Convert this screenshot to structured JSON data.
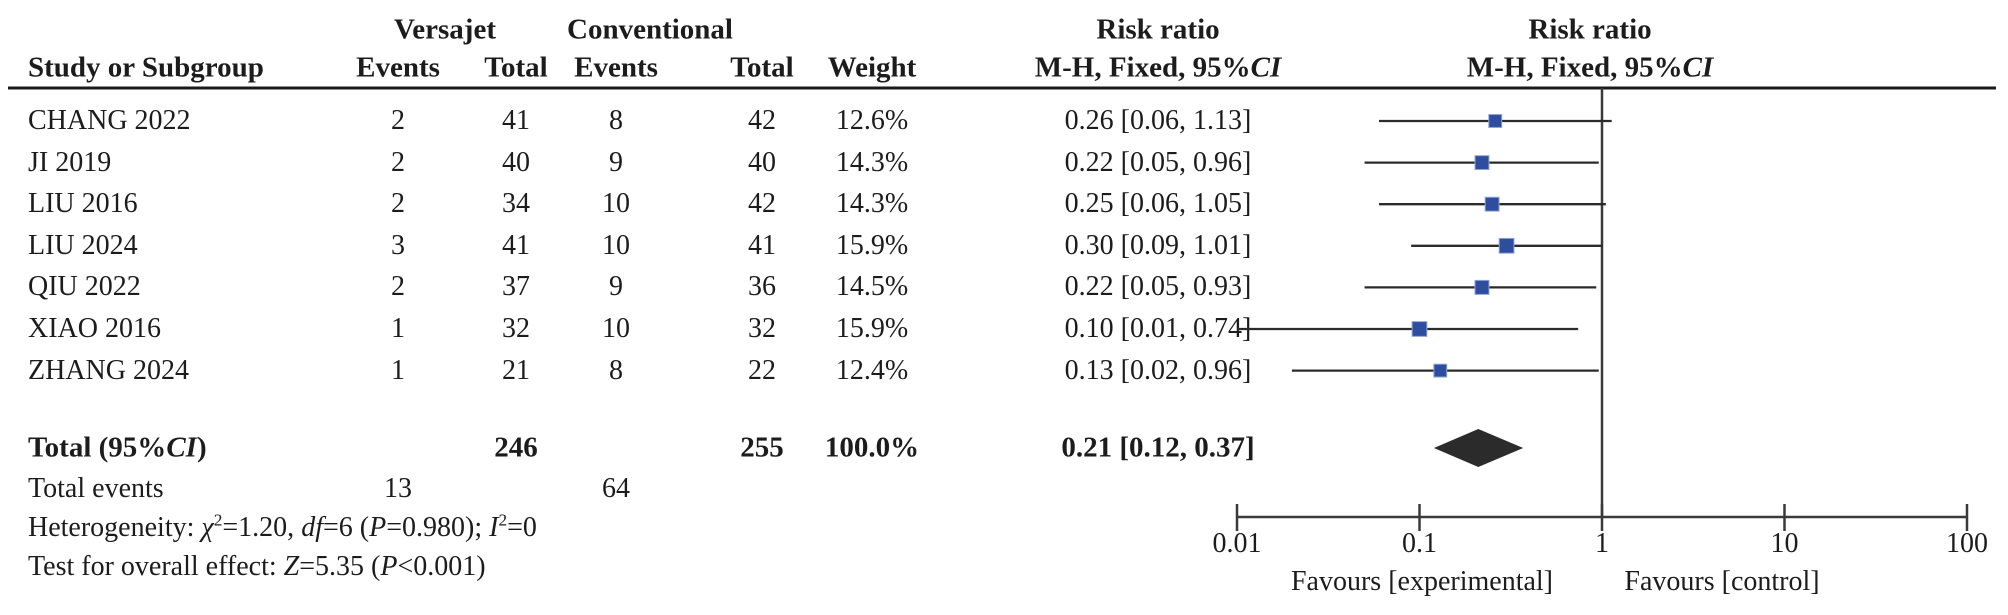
{
  "header": {
    "group1": "Versajet",
    "group2": "Conventional",
    "col_study": "Study or Subgroup",
    "col_events": "Events",
    "col_total": "Total",
    "col_weight": "Weight",
    "risk_ratio_title_left": "Risk ratio",
    "risk_ratio_title_right": "Risk ratio",
    "mh_label_segments": [
      {
        "t": "M-H, Fixed, 95%"
      },
      {
        "t": "CI",
        "i": true
      }
    ]
  },
  "colors": {
    "square": "#2e4d9e",
    "diamond": "#2b2b2b",
    "line": "#2b2b2b",
    "axis": "#3a3a3a",
    "rule": "#1a1a1a",
    "text": "#1c1c1c"
  },
  "chart_data": {
    "type": "forest",
    "effect_measure": "Risk ratio (M-H, Fixed, 95% CI)",
    "x_scale": "log",
    "x_range": [
      0.01,
      100
    ],
    "axis_ticks": [
      0.01,
      0.1,
      1,
      10,
      100
    ],
    "axis_tick_labels": [
      "0.01",
      "0.1",
      "1",
      "10",
      "100"
    ],
    "favours_left": "Favours [experimental]",
    "favours_right": "Favours [control]",
    "null_line": 1,
    "studies": [
      {
        "name": "CHANG 2022",
        "events1": "2",
        "total1": "41",
        "events2": "8",
        "total2": "42",
        "weight": "12.6%",
        "w": 12.6,
        "rr": 0.26,
        "ci_low": 0.06,
        "ci_high": 1.13,
        "label": "0.26 [0.06, 1.13]"
      },
      {
        "name": "JI 2019",
        "events1": "2",
        "total1": "40",
        "events2": "9",
        "total2": "40",
        "weight": "14.3%",
        "w": 14.3,
        "rr": 0.22,
        "ci_low": 0.05,
        "ci_high": 0.96,
        "label": "0.22 [0.05, 0.96]"
      },
      {
        "name": "LIU 2016",
        "events1": "2",
        "total1": "34",
        "events2": "10",
        "total2": "42",
        "weight": "14.3%",
        "w": 14.3,
        "rr": 0.25,
        "ci_low": 0.06,
        "ci_high": 1.05,
        "label": "0.25 [0.06, 1.05]"
      },
      {
        "name": "LIU 2024",
        "events1": "3",
        "total1": "41",
        "events2": "10",
        "total2": "41",
        "weight": "15.9%",
        "w": 15.9,
        "rr": 0.3,
        "ci_low": 0.09,
        "ci_high": 1.01,
        "label": "0.30 [0.09, 1.01]"
      },
      {
        "name": "QIU 2022",
        "events1": "2",
        "total1": "37",
        "events2": "9",
        "total2": "36",
        "weight": "14.5%",
        "w": 14.5,
        "rr": 0.22,
        "ci_low": 0.05,
        "ci_high": 0.93,
        "label": "0.22 [0.05, 0.93]"
      },
      {
        "name": "XIAO 2016",
        "events1": "1",
        "total1": "32",
        "events2": "10",
        "total2": "32",
        "weight": "15.9%",
        "w": 15.9,
        "rr": 0.1,
        "ci_low": 0.01,
        "ci_high": 0.74,
        "label": "0.10 [0.01, 0.74]"
      },
      {
        "name": "ZHANG 2024",
        "events1": "1",
        "total1": "21",
        "events2": "8",
        "total2": "22",
        "weight": "12.4%",
        "w": 12.4,
        "rr": 0.13,
        "ci_low": 0.02,
        "ci_high": 0.96,
        "label": "0.13 [0.02, 0.96]"
      }
    ],
    "total": {
      "label_segments": [
        {
          "t": "Total (95%"
        },
        {
          "t": "CI",
          "i": true
        },
        {
          "t": ")"
        }
      ],
      "total1": "246",
      "total2": "255",
      "weight": "100.0%",
      "rr": 0.21,
      "ci_low": 0.12,
      "ci_high": 0.37,
      "label": "0.21 [0.12, 0.37]"
    },
    "total_events": {
      "label": "Total events",
      "events1": "13",
      "events2": "64"
    },
    "heterogeneity_segments": [
      {
        "t": "Heterogeneity: "
      },
      {
        "t": "χ",
        "i": true
      },
      {
        "t": "2",
        "sup": true
      },
      {
        "t": "=1.20, "
      },
      {
        "t": "df",
        "i": true
      },
      {
        "t": "=6 ("
      },
      {
        "t": "P",
        "i": true
      },
      {
        "t": "=0.980); "
      },
      {
        "t": "I",
        "i": true
      },
      {
        "t": "2",
        "sup": true
      },
      {
        "t": "=0"
      }
    ],
    "overall_effect_segments": [
      {
        "t": "Test for overall effect: "
      },
      {
        "t": "Z",
        "i": true
      },
      {
        "t": "=5.35 ("
      },
      {
        "t": "P",
        "i": true
      },
      {
        "t": "<0.001)"
      }
    ]
  }
}
